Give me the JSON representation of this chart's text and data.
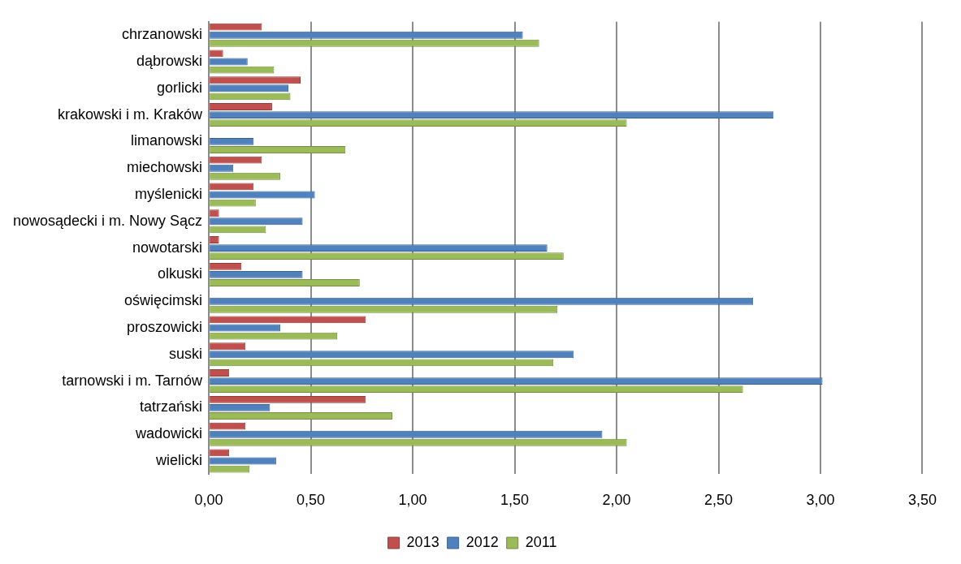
{
  "chart_data": {
    "type": "bar",
    "orientation": "horizontal",
    "categories": [
      "chrzanowski",
      "dąbrowski",
      "gorlicki",
      "krakowski i m. Kraków",
      "limanowski",
      "miechowski",
      "myślenicki",
      "nowosądecki i m. Nowy Sącz",
      "nowotarski",
      "olkuski",
      "oświęcimski",
      "proszowicki",
      "suski",
      "tarnowski i m. Tarnów",
      "tatrzański",
      "wadowicki",
      "wielicki"
    ],
    "series": [
      {
        "name": "2013",
        "color": "#c0504d",
        "values": [
          0.26,
          0.07,
          0.45,
          0.31,
          0,
          0.26,
          0.22,
          0.05,
          0.05,
          0.16,
          0,
          0.77,
          0.18,
          0.1,
          0.77,
          0.18,
          0.1
        ]
      },
      {
        "name": "2012",
        "color": "#4f81bd",
        "values": [
          1.54,
          0.19,
          0.39,
          2.77,
          0.22,
          0.12,
          0.52,
          0.46,
          1.66,
          0.46,
          2.67,
          0.35,
          1.79,
          3.01,
          0.3,
          1.93,
          0.33
        ]
      },
      {
        "name": "2011",
        "color": "#9bbb59",
        "values": [
          1.62,
          0.32,
          0.4,
          2.05,
          0.67,
          0.35,
          0.23,
          0.28,
          1.74,
          0.74,
          1.71,
          0.63,
          1.69,
          2.62,
          0.9,
          2.05,
          0.2
        ]
      }
    ],
    "xlim": [
      0,
      3.5
    ],
    "xticks": [
      {
        "value": 0,
        "label": "0,00"
      },
      {
        "value": 0.5,
        "label": "0,50"
      },
      {
        "value": 1,
        "label": "1,00"
      },
      {
        "value": 1.5,
        "label": "1,50"
      },
      {
        "value": 2,
        "label": "2,00"
      },
      {
        "value": 2.5,
        "label": "2,50"
      },
      {
        "value": 3,
        "label": "3,00"
      },
      {
        "value": 3.5,
        "label": "3,50"
      }
    ],
    "grid": "x",
    "legend": "bottom"
  }
}
